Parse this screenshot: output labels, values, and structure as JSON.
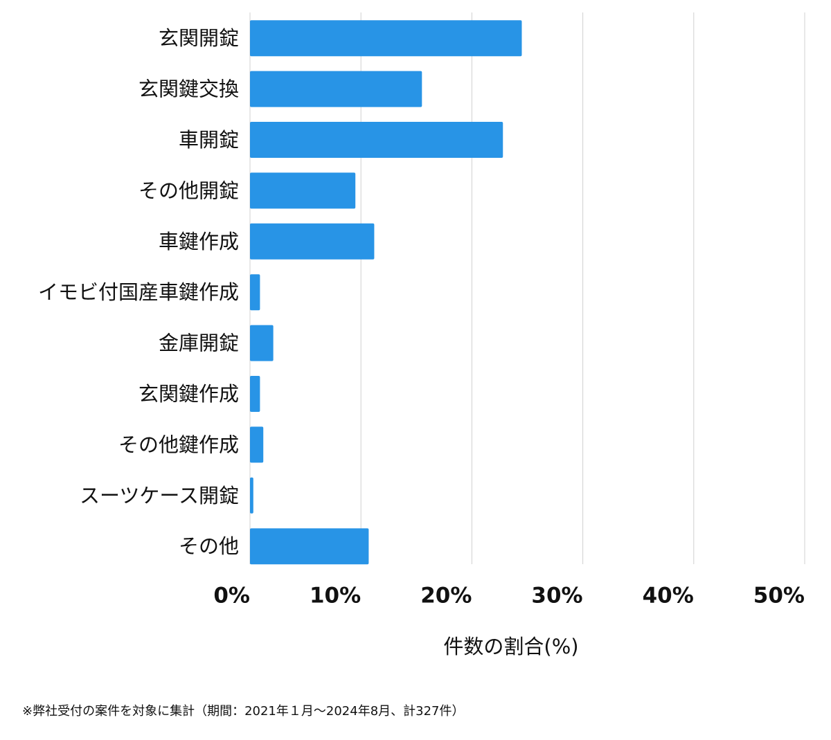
{
  "chart_data": {
    "type": "barh",
    "categories": [
      "玄関開錠",
      "玄関鍵交換",
      "車開錠",
      "その他開錠",
      "車鍵作成",
      "イモビ付国産車鍵作成",
      "金庫開錠",
      "玄関鍵作成",
      "その他鍵作成",
      "スーツケース開錠",
      "その他"
    ],
    "values": [
      24.5,
      15.5,
      22.8,
      9.5,
      11.2,
      0.9,
      2.1,
      0.9,
      1.2,
      0.3,
      10.7
    ],
    "color": "#2894e6",
    "xlim": [
      0,
      50
    ],
    "xticks": [
      {
        "value": 0,
        "label": "0%"
      },
      {
        "value": 10,
        "label": "10%"
      },
      {
        "value": 20,
        "label": "20%"
      },
      {
        "value": 30,
        "label": "30%"
      },
      {
        "value": 40,
        "label": "40%"
      },
      {
        "value": 50,
        "label": "50%"
      }
    ],
    "grid": true,
    "xlabel": "件数の割合(%)",
    "footnote": "※弊社受付の案件を対象に集計（期間：2021年１月〜2024年8月、計327件）"
  }
}
